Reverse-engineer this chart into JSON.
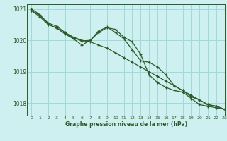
{
  "xlabel": "Graphe pression niveau de la mer (hPa)",
  "background_color": "#cff0f0",
  "grid_color": "#a0d8d8",
  "line_color": "#2d5a27",
  "xlim": [
    -0.5,
    23
  ],
  "ylim": [
    1017.6,
    1021.15
  ],
  "yticks": [
    1018,
    1019,
    1020,
    1021
  ],
  "xticks": [
    0,
    1,
    2,
    3,
    4,
    5,
    6,
    7,
    8,
    9,
    10,
    11,
    12,
    13,
    14,
    15,
    16,
    17,
    18,
    19,
    20,
    21,
    22,
    23
  ],
  "line1_smooth": {
    "x": [
      0,
      1,
      2,
      3,
      4,
      5,
      6,
      7,
      8,
      9,
      10,
      11,
      12,
      13,
      14,
      15,
      16,
      17,
      18,
      19,
      20,
      21,
      22,
      23
    ],
    "y": [
      1020.95,
      1020.8,
      1020.55,
      1020.45,
      1020.25,
      1020.1,
      1020.0,
      1019.95,
      1019.85,
      1019.75,
      1019.6,
      1019.45,
      1019.3,
      1019.15,
      1019.0,
      1018.85,
      1018.7,
      1018.55,
      1018.4,
      1018.25,
      1018.1,
      1017.95,
      1017.9,
      1017.8
    ]
  },
  "line2_bump": {
    "x": [
      0,
      1,
      2,
      3,
      4,
      5,
      6,
      7,
      8,
      9,
      10,
      11,
      12,
      13,
      14,
      15,
      16,
      17,
      18,
      19,
      20,
      21,
      22,
      23
    ],
    "y": [
      1020.95,
      1020.75,
      1020.5,
      1020.4,
      1020.2,
      1020.05,
      1019.85,
      1020.0,
      1020.25,
      1020.4,
      1020.35,
      1020.1,
      1019.95,
      1019.55,
      1018.9,
      1018.65,
      1018.5,
      1018.4,
      1018.35,
      1018.15,
      1017.95,
      1017.9,
      1017.85,
      1017.8
    ]
  },
  "line3_wiggly": {
    "x": [
      0,
      1,
      2,
      3,
      4,
      5,
      6,
      7,
      8,
      9,
      10,
      11,
      12,
      13,
      14,
      15,
      16,
      17,
      18,
      19,
      20,
      21,
      22,
      23
    ],
    "y": [
      1021.0,
      1020.82,
      1020.52,
      1020.38,
      1020.22,
      1020.08,
      1019.98,
      1020.0,
      1020.3,
      1020.42,
      1020.25,
      1020.05,
      1019.7,
      1019.35,
      1019.3,
      1019.15,
      1018.9,
      1018.55,
      1018.4,
      1018.2,
      1018.1,
      1017.95,
      1017.9,
      1017.8
    ]
  }
}
